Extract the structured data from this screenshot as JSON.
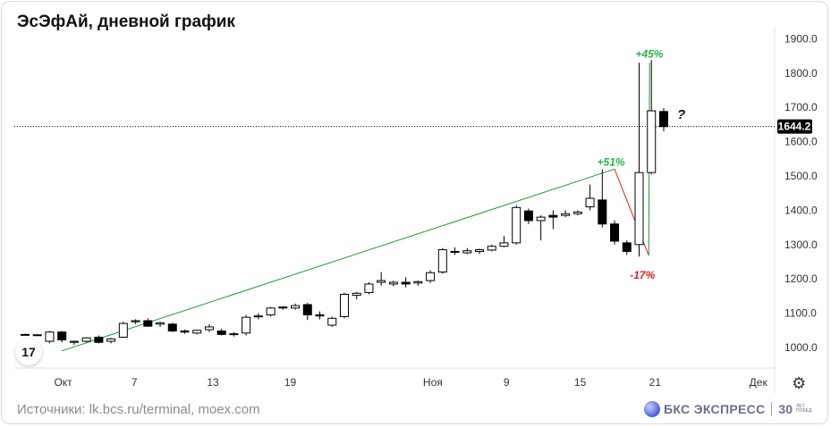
{
  "title": "ЭсЭфАй, дневной график",
  "footer": {
    "sources": "Источники: lk.bcs.ru/terminal, moex.com",
    "brand": "БКС ЭКСПРЕСС",
    "brand_years": "30",
    "brand_sub1": "ЛЕТ",
    "brand_sub2": "ПОБЕД"
  },
  "logo_text": "17",
  "settings_icon": "gear-icon",
  "chart_data": {
    "type": "candlestick",
    "ylim": [
      940,
      1935
    ],
    "y_ticks": [
      "1000.0",
      "1100.0",
      "1200.0",
      "1300.0",
      "1400.0",
      "1500.0",
      "1600.0",
      "1700.0",
      "1800.0",
      "1900.0"
    ],
    "x_ticks": [
      "Окт",
      "7",
      "13",
      "19",
      "Ноя",
      "9",
      "15",
      "21",
      "Дек"
    ],
    "last_price": "1644.2",
    "grid": false,
    "colors": {
      "up": "#ffffff",
      "down": "#000000",
      "outline": "#000000",
      "trend_up": "#1a9a3a",
      "trend_down": "#e02020",
      "label_up": "#2bb14b",
      "label_down": "#e02020"
    },
    "candles": [
      [
        "25 сен",
        1038,
        1040,
        1035,
        1037
      ],
      [
        "26 сен",
        1037,
        1038,
        1034,
        1035
      ],
      [
        "27 сен",
        1018,
        1048,
        1012,
        1045
      ],
      [
        "28 сен",
        1045,
        1048,
        1015,
        1022
      ],
      [
        "1 окт",
        1015,
        1020,
        1008,
        1018
      ],
      [
        "2 окт",
        1018,
        1030,
        1015,
        1028
      ],
      [
        "3 окт",
        1030,
        1035,
        1012,
        1015
      ],
      [
        "4 окт",
        1018,
        1028,
        1012,
        1025
      ],
      [
        "7 окт",
        1030,
        1075,
        1028,
        1070
      ],
      [
        "8 окт",
        1075,
        1082,
        1068,
        1078
      ],
      [
        "9 окт",
        1078,
        1085,
        1060,
        1062
      ],
      [
        "10 окт",
        1068,
        1075,
        1060,
        1072
      ],
      [
        "11 окт",
        1068,
        1072,
        1045,
        1048
      ],
      [
        "14 окт",
        1048,
        1052,
        1040,
        1045
      ],
      [
        "15 окт",
        1042,
        1052,
        1038,
        1050
      ],
      [
        "16 окт",
        1052,
        1068,
        1045,
        1060
      ],
      [
        "17 окт",
        1048,
        1055,
        1035,
        1038
      ],
      [
        "18 окт",
        1038,
        1045,
        1032,
        1040
      ],
      [
        "21 окт",
        1042,
        1095,
        1035,
        1088
      ],
      [
        "22 окт",
        1092,
        1100,
        1082,
        1090
      ],
      [
        "23 окт",
        1095,
        1118,
        1090,
        1115
      ],
      [
        "24 окт",
        1118,
        1120,
        1110,
        1115
      ],
      [
        "25 окт",
        1115,
        1128,
        1110,
        1122
      ],
      [
        "28 окт",
        1125,
        1130,
        1080,
        1095
      ],
      [
        "29 окт",
        1095,
        1105,
        1082,
        1092
      ],
      [
        "30 окт",
        1065,
        1090,
        1060,
        1085
      ],
      [
        "31 окт",
        1090,
        1160,
        1085,
        1155
      ],
      [
        "1 ноя",
        1152,
        1162,
        1140,
        1158
      ],
      [
        "5 ноя",
        1160,
        1190,
        1155,
        1185
      ],
      [
        "6 ноя",
        1190,
        1220,
        1180,
        1195
      ],
      [
        "7 ноя",
        1185,
        1195,
        1178,
        1190
      ],
      [
        "8 ноя",
        1190,
        1205,
        1175,
        1185
      ],
      [
        "11 ноя",
        1188,
        1195,
        1180,
        1192
      ],
      [
        "12 ноя",
        1195,
        1225,
        1188,
        1218
      ],
      [
        "13 ноя",
        1220,
        1290,
        1215,
        1285
      ],
      [
        "14 ноя",
        1280,
        1292,
        1270,
        1278
      ],
      [
        "15 ноя",
        1276,
        1290,
        1272,
        1282
      ],
      [
        "18 ноя",
        1280,
        1288,
        1272,
        1285
      ],
      [
        "19 ноя",
        1284,
        1300,
        1280,
        1295
      ],
      [
        "20 ноя",
        1295,
        1325,
        1292,
        1305
      ],
      [
        "21 ноя",
        1305,
        1415,
        1300,
        1408
      ],
      [
        "22 ноя",
        1398,
        1405,
        1360,
        1370
      ],
      [
        "25 ноя",
        1370,
        1385,
        1312,
        1380
      ],
      [
        "26 ноя",
        1385,
        1400,
        1345,
        1380
      ],
      [
        "27 ноя",
        1385,
        1400,
        1380,
        1390
      ],
      [
        "28 ноя",
        1390,
        1400,
        1385,
        1395
      ],
      [
        "29 ноя",
        1410,
        1475,
        1400,
        1435
      ],
      [
        "2 дек",
        1430,
        1520,
        1350,
        1360
      ],
      [
        "3 дек",
        1360,
        1370,
        1300,
        1310
      ],
      [
        "4 дек",
        1305,
        1312,
        1270,
        1280
      ],
      [
        "5 дек",
        1300,
        1830,
        1265,
        1510
      ],
      [
        "6 дек",
        1510,
        1838,
        1505,
        1690
      ],
      [
        "9 дек",
        1688,
        1698,
        1630,
        1644
      ]
    ],
    "annotations": [
      {
        "text": "+51%",
        "color": "up"
      },
      {
        "text": "-17%",
        "color": "down"
      },
      {
        "text": "+45%",
        "color": "up"
      },
      {
        "text": "?",
        "color": "neutral"
      }
    ]
  }
}
